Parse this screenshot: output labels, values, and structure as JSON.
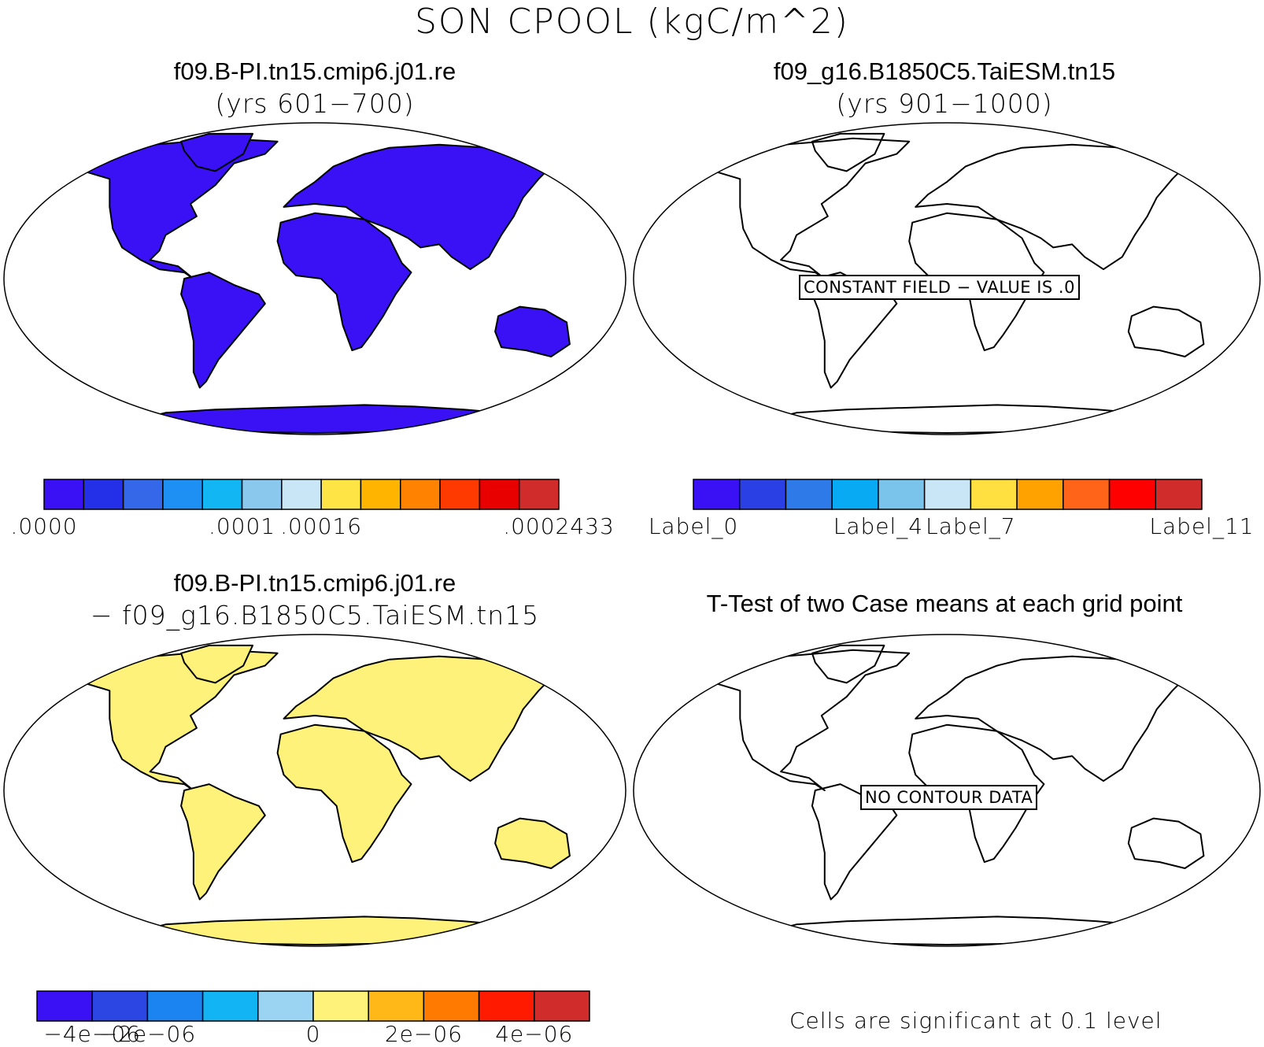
{
  "title": "SON CPOOL (kgC/m^2)",
  "panels": [
    {
      "title": "f09.B-PI.tn15.cmip6.j01.re",
      "subtitle": "(yrs 601−700)",
      "fill": "#3a10f5",
      "message": ""
    },
    {
      "title": "f09_g16.B1850C5.TaiESM.tn15",
      "subtitle": "(yrs 901−1000)",
      "fill": "none",
      "message": "CONSTANT FIELD − VALUE IS .0"
    },
    {
      "title": "f09.B-PI.tn15.cmip6.j01.re",
      "subtitle": "− f09_g16.B1850C5.TaiESM.tn15",
      "fill": "#fff27a",
      "message": ""
    },
    {
      "title": "T-Test of two Case means at each grid point",
      "subtitle": "",
      "fill": "none",
      "message": "NO CONTOUR DATA"
    }
  ],
  "colorbars": [
    {
      "colors": [
        "#3a10f5",
        "#2430e8",
        "#3468e8",
        "#1e90f4",
        "#12b6f2",
        "#8ac8ee",
        "#c8e6f6",
        "#ffe445",
        "#ffb400",
        "#ff8200",
        "#ff3a00",
        "#e80000",
        "#d02c2c"
      ],
      "labels": [
        ".0000",
        ".0001",
        ".00016",
        ".0002433"
      ],
      "label_positions": [
        0,
        5,
        7,
        13
      ]
    },
    {
      "colors": [
        "#3a10f5",
        "#2a40e4",
        "#2e7ae8",
        "#08aaf4",
        "#7ac4ec",
        "#c8e6f6",
        "#ffe040",
        "#ffa200",
        "#ff6418",
        "#ff0000",
        "#d02c2c"
      ],
      "labels": [
        "Label_0",
        "Label_4",
        "Label_7",
        "Label_11"
      ],
      "label_positions": [
        0,
        4,
        6,
        11
      ]
    },
    {
      "colors": [
        "#3a10f5",
        "#2c46e4",
        "#1c84f0",
        "#12b4f4",
        "#9ad4f2",
        "#fff27a",
        "#ffb818",
        "#ff7a00",
        "#ff1a00",
        "#d02c2c"
      ],
      "labels": [
        "−4e−06",
        "−2e−06",
        "0",
        "2e−06",
        "4e−06"
      ],
      "label_positions": [
        1,
        2,
        5,
        7,
        9
      ]
    }
  ],
  "footnote": "Cells are significant at 0.1 level"
}
